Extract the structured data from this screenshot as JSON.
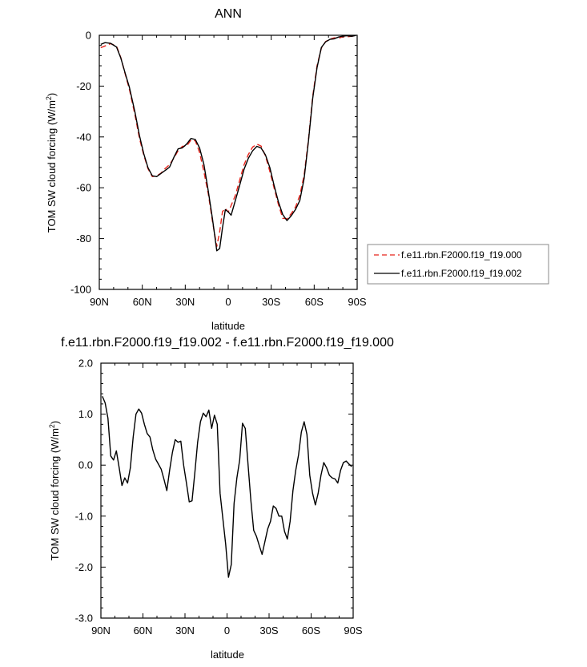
{
  "chart_data": [
    {
      "type": "line",
      "title": "ANN",
      "xlabel": "latitude",
      "ylabel": "TOM SW cloud forcing (W/m",
      "ylabel_sup": "2",
      "ylabel_close": ")",
      "xlim": [
        90,
        -90
      ],
      "ylim": [
        -100,
        0
      ],
      "xticks": [
        90,
        60,
        30,
        0,
        -30,
        -60,
        -90
      ],
      "xtick_labels": [
        "90N",
        "60N",
        "30N",
        "0",
        "30S",
        "60S",
        "90S"
      ],
      "yticks": [
        0,
        -20,
        -40,
        -60,
        -80,
        -100
      ],
      "ytick_labels": [
        "0",
        "-20",
        "-40",
        "-60",
        "-80",
        "-100"
      ],
      "legend": "right",
      "series": [
        {
          "name": "f.e11.rbn.F2000.f19_f19.000",
          "color": "#e8231a",
          "dashed": true,
          "x": [
            89,
            86,
            82,
            78,
            75,
            72,
            69,
            65,
            62,
            59,
            56,
            53,
            50,
            47,
            44,
            41,
            38,
            35,
            32,
            29,
            26,
            23,
            20,
            17,
            14,
            11,
            8,
            6,
            4,
            2,
            0,
            -2,
            -5,
            -8,
            -11,
            -14,
            -17,
            -20,
            -23,
            -26,
            -29,
            -32,
            -35,
            -38,
            -41,
            -44,
            -47,
            -50,
            -53,
            -56,
            -59,
            -62,
            -65,
            -68,
            -71,
            -74,
            -77,
            -80,
            -83,
            -86,
            -89
          ],
          "y": [
            -4.9,
            -4.2,
            -3.3,
            -4.3,
            -8.7,
            -15.1,
            -21.3,
            -31.6,
            -40.5,
            -47.1,
            -52.5,
            -55.6,
            -55.3,
            -54.3,
            -52.4,
            -50.9,
            -48.4,
            -45.4,
            -43.7,
            -43.6,
            -41.2,
            -41.5,
            -46.1,
            -53.7,
            -62.2,
            -73.2,
            -83.1,
            -77.4,
            -69.4,
            -68.1,
            -69.6,
            -67.0,
            -63.0,
            -57.0,
            -51.0,
            -47.0,
            -44.0,
            -42.8,
            -43.6,
            -47.5,
            -53.5,
            -60.0,
            -66.5,
            -72.0,
            -72.2,
            -70.2,
            -67.5,
            -63.0,
            -55.0,
            -41.0,
            -24.0,
            -12.0,
            -5.0,
            -2.5,
            -1.5,
            -1.0,
            -1.2,
            -0.6,
            -0.6,
            -0.4,
            -0.2
          ]
        },
        {
          "name": "f.e11.rbn.F2000.f19_f19.002",
          "color": "#000000",
          "dashed": false,
          "x": [
            89,
            86,
            82,
            78,
            75,
            72,
            69,
            65,
            62,
            59,
            56,
            53,
            50,
            47,
            44,
            41,
            38,
            35,
            32,
            29,
            26,
            23,
            20,
            17,
            14,
            11,
            8,
            6,
            4,
            2,
            0,
            -2,
            -5,
            -8,
            -11,
            -14,
            -17,
            -20,
            -23,
            -26,
            -29,
            -32,
            -35,
            -38,
            -41,
            -44,
            -47,
            -50,
            -53,
            -56,
            -59,
            -62,
            -65,
            -68,
            -71,
            -74,
            -77,
            -80,
            -83,
            -86,
            -89
          ],
          "y": [
            -3.6,
            -2.9,
            -3.2,
            -4.6,
            -8.9,
            -14.8,
            -20.5,
            -30.5,
            -39.4,
            -46.6,
            -52.1,
            -55.3,
            -55.6,
            -54.4,
            -53.2,
            -51.9,
            -48.1,
            -44.7,
            -44.3,
            -42.8,
            -40.6,
            -41.0,
            -44.3,
            -50.8,
            -61.1,
            -72.2,
            -84.8,
            -83.9,
            -75.8,
            -68.6,
            -69.5,
            -70.8,
            -65.0,
            -59.0,
            -52.8,
            -48.5,
            -45.5,
            -43.7,
            -44.4,
            -47.1,
            -52.0,
            -59.0,
            -65.5,
            -70.5,
            -72.9,
            -71.0,
            -68.5,
            -65.0,
            -56.3,
            -41.6,
            -24.8,
            -12.7,
            -4.8,
            -2.6,
            -1.6,
            -1.4,
            -0.7,
            -0.3,
            -0.2,
            -0.4,
            -0.1
          ]
        }
      ]
    },
    {
      "type": "line",
      "title": "f.e11.rbn.F2000.f19_f19.002 - f.e11.rbn.F2000.f19_f19.000",
      "xlabel": "latitude",
      "ylabel": "TOM SW cloud forcing (W/m",
      "ylabel_sup": "2",
      "ylabel_close": ")",
      "xlim": [
        90,
        -90
      ],
      "ylim": [
        -3.0,
        2.0
      ],
      "xticks": [
        90,
        60,
        30,
        0,
        -30,
        -60,
        -90
      ],
      "xtick_labels": [
        "90N",
        "60N",
        "30N",
        "0",
        "30S",
        "60S",
        "90S"
      ],
      "yticks": [
        2.0,
        1.0,
        0.0,
        -1.0,
        -2.0,
        -3.0
      ],
      "ytick_labels": [
        "2.0",
        "1.0",
        "0.0",
        "-1.0",
        "-2.0",
        "-3.0"
      ],
      "series": [
        {
          "color": "#000000",
          "dashed": false,
          "x": [
            89,
            87,
            85,
            83,
            81,
            79,
            77,
            75,
            73,
            71,
            69,
            67,
            65,
            63,
            61,
            59,
            57,
            55,
            53,
            51,
            49,
            47,
            45,
            43,
            41,
            39,
            37,
            35,
            33,
            31,
            29,
            27,
            25,
            23,
            21,
            19,
            17,
            15,
            13,
            11,
            9,
            7,
            5,
            3,
            1,
            -1,
            -3,
            -5,
            -7,
            -9,
            -11,
            -13,
            -15,
            -17,
            -19,
            -21,
            -23,
            -25,
            -27,
            -29,
            -31,
            -33,
            -35,
            -37,
            -39,
            -41,
            -43,
            -45,
            -47,
            -49,
            -51,
            -53,
            -55,
            -57,
            -59,
            -61,
            -63,
            -65,
            -67,
            -69,
            -71,
            -73,
            -75,
            -77,
            -79,
            -81,
            -83,
            -85,
            -87,
            -89
          ],
          "y": [
            1.35,
            1.22,
            0.92,
            0.18,
            0.1,
            0.28,
            -0.05,
            -0.4,
            -0.25,
            -0.35,
            -0.05,
            0.55,
            1.0,
            1.1,
            1.02,
            0.8,
            0.62,
            0.55,
            0.3,
            0.12,
            0.02,
            -0.08,
            -0.28,
            -0.5,
            -0.1,
            0.25,
            0.5,
            0.45,
            0.47,
            0.0,
            -0.35,
            -0.72,
            -0.7,
            -0.15,
            0.45,
            0.85,
            1.02,
            0.95,
            1.08,
            0.72,
            0.98,
            0.8,
            -0.55,
            -1.05,
            -1.55,
            -2.2,
            -1.95,
            -0.75,
            -0.25,
            0.1,
            0.82,
            0.72,
            0.0,
            -0.7,
            -1.28,
            -1.4,
            -1.58,
            -1.75,
            -1.5,
            -1.25,
            -1.1,
            -0.8,
            -0.85,
            -1.0,
            -1.0,
            -1.3,
            -1.45,
            -1.1,
            -0.5,
            -0.1,
            0.2,
            0.65,
            0.85,
            0.6,
            -0.2,
            -0.55,
            -0.78,
            -0.55,
            -0.2,
            0.05,
            -0.05,
            -0.2,
            -0.25,
            -0.27,
            -0.35,
            -0.1,
            0.05,
            0.08,
            0.02,
            -0.03
          ]
        }
      ]
    }
  ]
}
